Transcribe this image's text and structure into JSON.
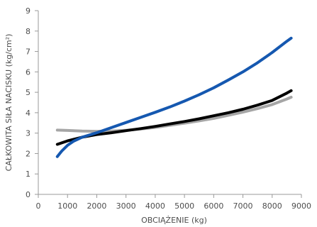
{
  "chart_data": {
    "type": "line",
    "title": "",
    "xlabel": "OBCIĄŻENIE (kg)",
    "ylabel": "CAŁKOWITA SIŁA NACISKU (kg/cm²)",
    "xlim": [
      0,
      9000
    ],
    "ylim": [
      0,
      9
    ],
    "x_ticks": [
      0,
      1000,
      2000,
      3000,
      4000,
      5000,
      6000,
      7000,
      8000,
      9000
    ],
    "y_ticks": [
      0,
      1,
      2,
      3,
      4,
      5,
      6,
      7,
      8,
      9
    ],
    "grid": false,
    "legend": "none",
    "series": [
      {
        "color": "#a6a6a6",
        "x": [
          650,
          1000,
          1500,
          2000,
          2500,
          3000,
          3500,
          4000,
          4500,
          5000,
          5500,
          6000,
          6500,
          7000,
          7500,
          8000,
          8500,
          8650
        ],
        "y": [
          3.15,
          3.13,
          3.1,
          3.09,
          3.1,
          3.14,
          3.2,
          3.28,
          3.38,
          3.49,
          3.6,
          3.72,
          3.87,
          4.03,
          4.2,
          4.4,
          4.67,
          4.76
        ]
      },
      {
        "color": "#000000",
        "x": [
          650,
          1000,
          1500,
          2000,
          2500,
          3000,
          3500,
          4000,
          4500,
          5000,
          5500,
          6000,
          6500,
          7000,
          7500,
          8000,
          8500,
          8650
        ],
        "y": [
          2.45,
          2.62,
          2.8,
          2.93,
          3.02,
          3.12,
          3.22,
          3.33,
          3.45,
          3.57,
          3.7,
          3.85,
          4.0,
          4.17,
          4.37,
          4.6,
          4.96,
          5.08
        ]
      },
      {
        "color": "#1558b0",
        "x": [
          650,
          800,
          1000,
          1200,
          1500,
          2000,
          2500,
          3000,
          3500,
          4000,
          4500,
          5000,
          5500,
          6000,
          6500,
          7000,
          7500,
          8000,
          8500,
          8650
        ],
        "y": [
          1.85,
          2.12,
          2.4,
          2.6,
          2.8,
          3.02,
          3.27,
          3.52,
          3.77,
          4.02,
          4.28,
          4.57,
          4.88,
          5.22,
          5.6,
          6.0,
          6.45,
          6.95,
          7.5,
          7.65
        ]
      }
    ]
  }
}
